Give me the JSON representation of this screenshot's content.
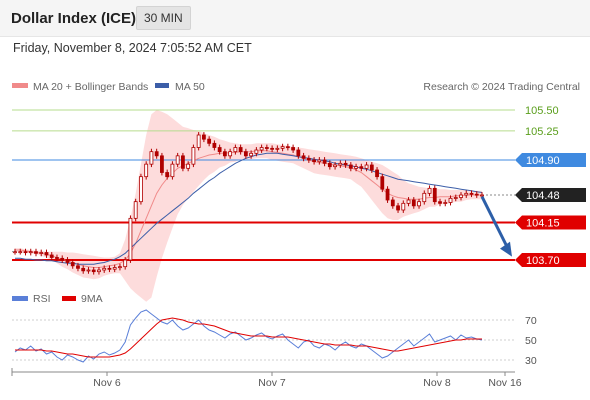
{
  "header": {
    "title": "Dollar Index (ICE)",
    "timeframe": "30 MIN",
    "datetime": "Friday, November 8, 2024 7:05:52 AM CET"
  },
  "colors": {
    "ma20": "#f08a8a",
    "ma50": "#3c5ea8",
    "bollinger_fill": "#fdd6d6",
    "candle": "#b00000",
    "support": "#e00000",
    "resistance": "#3f8ae0",
    "target": "#8ec04a",
    "rsi": "#5a7fd8",
    "rsi_ma": "#e00000",
    "arrow": "#2d5fa8"
  },
  "chart_data": [
    {
      "type": "candlestick",
      "legend": [
        "MA 20 + Bollinger Bands",
        "MA 50"
      ],
      "legend_position": "top-left",
      "watermark": "Research © 2024 Trading Central",
      "ylim": [
        103.4,
        105.62
      ],
      "x_tick_labels": [
        "Nov 6",
        "Nov 7",
        "Nov 8",
        "Nov 16"
      ],
      "close_series": [
        103.8,
        103.8,
        103.79,
        103.8,
        103.78,
        103.79,
        103.76,
        103.73,
        103.72,
        103.7,
        103.67,
        103.63,
        103.6,
        103.57,
        103.58,
        103.56,
        103.58,
        103.6,
        103.59,
        103.61,
        103.62,
        103.7,
        104.2,
        104.4,
        104.7,
        104.85,
        105.0,
        104.95,
        104.75,
        104.7,
        104.85,
        104.95,
        104.8,
        104.85,
        105.05,
        105.2,
        105.15,
        105.1,
        105.05,
        105.0,
        104.95,
        105.0,
        105.05,
        105.0,
        104.95,
        104.98,
        105.02,
        105.05,
        105.04,
        105.03,
        105.04,
        105.06,
        105.05,
        105.02,
        104.95,
        104.92,
        104.9,
        104.88,
        104.9,
        104.86,
        104.82,
        104.84,
        104.86,
        104.84,
        104.8,
        104.82,
        104.8,
        104.84,
        104.78,
        104.7,
        104.55,
        104.42,
        104.35,
        104.3,
        104.38,
        104.42,
        104.35,
        104.4,
        104.5,
        104.56,
        104.4,
        104.38,
        104.39,
        104.44,
        104.45,
        104.48,
        104.5,
        104.49,
        104.48,
        104.48
      ],
      "ma20": [
        103.82,
        103.82,
        103.81,
        103.8,
        103.79,
        103.78,
        103.77,
        103.75,
        103.73,
        103.71,
        103.69,
        103.67,
        103.65,
        103.63,
        103.62,
        103.61,
        103.61,
        103.62,
        103.63,
        103.64,
        103.66,
        103.7,
        103.78,
        103.9,
        104.05,
        104.2,
        104.35,
        104.5,
        104.6,
        104.68,
        104.74,
        104.8,
        104.83,
        104.86,
        104.89,
        104.92,
        104.94,
        104.96,
        104.97,
        104.98,
        104.98,
        104.99,
        104.99,
        105.0,
        105.0,
        105.0,
        105.01,
        105.01,
        105.01,
        105.0,
        104.99,
        104.98,
        104.97,
        104.96,
        104.94,
        104.92,
        104.9,
        104.88,
        104.87,
        104.86,
        104.85,
        104.84,
        104.83,
        104.82,
        104.81,
        104.78,
        104.75,
        104.7,
        104.65,
        104.6,
        104.55,
        104.5,
        104.47,
        104.45,
        104.44,
        104.43,
        104.43,
        104.43,
        104.44,
        104.45,
        104.45,
        104.46,
        104.46,
        104.46,
        104.47,
        104.47,
        104.48,
        104.48,
        104.48,
        104.48
      ],
      "bb_upper": [
        103.84,
        103.84,
        103.83,
        103.82,
        103.81,
        103.81,
        103.8,
        103.8,
        103.8,
        103.8,
        103.79,
        103.79,
        103.78,
        103.77,
        103.76,
        103.75,
        103.74,
        103.73,
        103.73,
        103.74,
        103.78,
        103.95,
        104.2,
        104.5,
        104.85,
        105.2,
        105.45,
        105.5,
        105.48,
        105.45,
        105.4,
        105.35,
        105.3,
        105.28,
        105.26,
        105.25,
        105.22,
        105.2,
        105.18,
        105.15,
        105.13,
        105.11,
        105.1,
        105.09,
        105.09,
        105.09,
        105.1,
        105.1,
        105.1,
        105.1,
        105.09,
        105.08,
        105.07,
        105.06,
        105.05,
        105.04,
        105.03,
        105.02,
        105.01,
        105.0,
        104.99,
        104.98,
        104.97,
        104.96,
        104.95,
        104.94,
        104.92,
        104.9,
        104.88,
        104.86,
        104.84,
        104.8,
        104.76,
        104.72,
        104.66,
        104.62,
        104.6,
        104.58,
        104.57,
        104.56,
        104.56,
        104.55,
        104.55,
        104.54,
        104.54,
        104.54,
        104.54,
        104.53,
        104.53,
        104.53
      ],
      "bb_lower": [
        103.8,
        103.8,
        103.79,
        103.78,
        103.77,
        103.75,
        103.73,
        103.7,
        103.66,
        103.62,
        103.59,
        103.55,
        103.52,
        103.49,
        103.48,
        103.47,
        103.48,
        103.51,
        103.53,
        103.54,
        103.54,
        103.45,
        103.36,
        103.3,
        103.25,
        103.2,
        103.25,
        103.5,
        103.72,
        103.91,
        104.08,
        104.25,
        104.36,
        104.44,
        104.52,
        104.59,
        104.66,
        104.72,
        104.76,
        104.81,
        104.83,
        104.87,
        104.88,
        104.91,
        104.91,
        104.91,
        104.92,
        104.92,
        104.92,
        104.9,
        104.89,
        104.88,
        104.87,
        104.86,
        104.83,
        104.8,
        104.77,
        104.74,
        104.73,
        104.72,
        104.71,
        104.7,
        104.69,
        104.68,
        104.67,
        104.62,
        104.58,
        104.5,
        104.42,
        104.34,
        104.26,
        104.2,
        104.18,
        104.18,
        104.22,
        104.24,
        104.26,
        104.28,
        104.31,
        104.34,
        104.34,
        104.37,
        104.37,
        104.38,
        104.4,
        104.4,
        104.42,
        104.43,
        104.43,
        104.43
      ],
      "ma50": [
        103.72,
        103.72,
        103.71,
        103.71,
        103.7,
        103.7,
        103.69,
        103.69,
        103.68,
        103.67,
        103.66,
        103.66,
        103.65,
        103.65,
        103.65,
        103.65,
        103.66,
        103.67,
        103.69,
        103.71,
        103.74,
        103.78,
        103.84,
        103.9,
        103.96,
        104.02,
        104.08,
        104.14,
        104.19,
        104.24,
        104.29,
        104.34,
        104.39,
        104.44,
        104.5,
        104.55,
        104.6,
        104.65,
        104.69,
        104.74,
        104.78,
        104.82,
        104.86,
        104.89,
        104.92,
        104.94,
        104.96,
        104.97,
        104.98,
        104.98,
        104.98,
        104.97,
        104.96,
        104.95,
        104.94,
        104.93,
        104.92,
        104.91,
        104.9,
        104.89,
        104.88,
        104.86,
        104.85,
        104.84,
        104.83,
        104.82,
        104.8,
        104.79,
        104.77,
        104.75,
        104.73,
        104.71,
        104.69,
        104.67,
        104.66,
        104.65,
        104.64,
        104.63,
        104.62,
        104.61,
        104.6,
        104.59,
        104.58,
        104.57,
        104.56,
        104.55,
        104.54,
        104.53,
        104.52,
        104.51
      ],
      "price_lines": [
        {
          "label": "105.50",
          "value": 105.5,
          "kind": "target"
        },
        {
          "label": "105.25",
          "value": 105.25,
          "kind": "target"
        },
        {
          "label": "104.90",
          "value": 104.9,
          "kind": "resistance"
        },
        {
          "label": "104.48",
          "value": 104.48,
          "kind": "last"
        },
        {
          "label": "104.15",
          "value": 104.15,
          "kind": "support"
        },
        {
          "label": "103.70",
          "value": 103.7,
          "kind": "support"
        }
      ],
      "forecast_arrow": {
        "from": 104.46,
        "to": 103.74
      }
    },
    {
      "type": "line",
      "legend": [
        "RSI",
        "9MA"
      ],
      "ylim": [
        20,
        80
      ],
      "y_ticks": [
        {
          "label": "70",
          "value": 70
        },
        {
          "label": "50",
          "value": 50
        },
        {
          "label": "30",
          "value": 30
        }
      ],
      "rsi": [
        38,
        42,
        40,
        44,
        39,
        41,
        36,
        38,
        33,
        30,
        35,
        33,
        30,
        28,
        34,
        31,
        36,
        38,
        35,
        37,
        40,
        48,
        65,
        72,
        78,
        80,
        76,
        72,
        68,
        66,
        70,
        64,
        60,
        62,
        66,
        70,
        64,
        60,
        58,
        55,
        52,
        56,
        58,
        54,
        50,
        52,
        55,
        57,
        53,
        51,
        54,
        56,
        50,
        46,
        42,
        48,
        50,
        44,
        42,
        46,
        44,
        40,
        45,
        48,
        44,
        42,
        46,
        44,
        40,
        36,
        32,
        34,
        38,
        42,
        46,
        50,
        44,
        48,
        52,
        56,
        48,
        50,
        52,
        54,
        50,
        55,
        52,
        53,
        51,
        50
      ],
      "rsi_ma": [
        40,
        40,
        40,
        40,
        40,
        40,
        39,
        39,
        38,
        37,
        36,
        36,
        35,
        34,
        33,
        33,
        33,
        33,
        33,
        34,
        35,
        37,
        41,
        46,
        51,
        56,
        61,
        66,
        70,
        71,
        72,
        71,
        70,
        68,
        67,
        66,
        66,
        65,
        64,
        62,
        60,
        58,
        57,
        56,
        55,
        54,
        54,
        54,
        54,
        53,
        53,
        53,
        53,
        52,
        51,
        50,
        49,
        48,
        47,
        46,
        46,
        45,
        45,
        45,
        45,
        44,
        44,
        44,
        43,
        42,
        41,
        40,
        39,
        39,
        40,
        41,
        42,
        43,
        44,
        45,
        46,
        47,
        48,
        49,
        50,
        50,
        51,
        51,
        51,
        51
      ]
    }
  ]
}
